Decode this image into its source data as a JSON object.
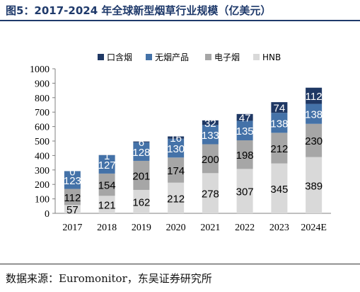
{
  "figure": {
    "title": "图5：2017-2024 年全球新型烟草行业规模（亿美元）",
    "source": "数据来源：Euromonitor，东吴证券研究所"
  },
  "colors": {
    "rule": "#1f3a6b",
    "series": [
      "#1f3864",
      "#4472a8",
      "#a6a6a6",
      "#d9d9d9"
    ]
  },
  "chart_data": {
    "type": "bar",
    "stacked": true,
    "categories": [
      "2017",
      "2018",
      "2019",
      "2020",
      "2021",
      "2022",
      "2023",
      "2024E"
    ],
    "series": [
      {
        "name": "HNB",
        "values": [
          57,
          121,
          162,
          212,
          278,
          307,
          345,
          389
        ]
      },
      {
        "name": "电子烟",
        "values": [
          112,
          154,
          201,
          174,
          200,
          198,
          212,
          230
        ]
      },
      {
        "name": "无烟产品",
        "values": [
          123,
          127,
          128,
          130,
          133,
          135,
          138,
          138
        ]
      },
      {
        "name": "口含烟",
        "values": [
          0,
          1,
          6,
          16,
          32,
          47,
          74,
          112
        ]
      }
    ],
    "legend_order": [
      "口含烟",
      "无烟产品",
      "电子烟",
      "HNB"
    ],
    "legend_position": "top",
    "ylim": [
      0,
      1000
    ],
    "yticks": [
      0,
      100,
      200,
      300,
      400,
      500,
      600,
      700,
      800,
      900,
      1000
    ],
    "grid": false
  }
}
